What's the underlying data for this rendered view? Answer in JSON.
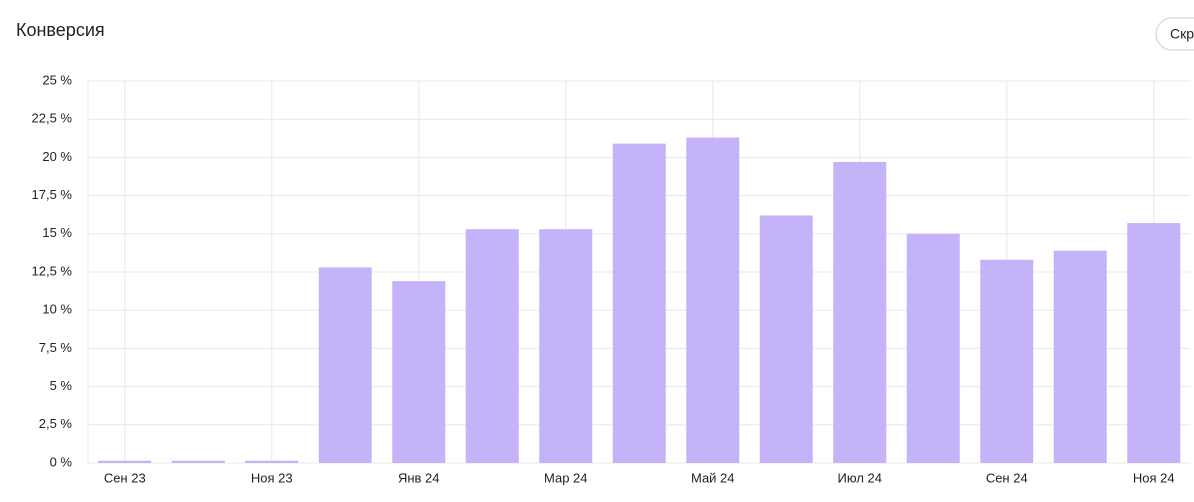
{
  "chart_data": {
    "type": "bar",
    "title": "Конверсия",
    "categories": [
      "Сен 23",
      null,
      "Ноя 23",
      null,
      "Янв 24",
      null,
      "Мар 24",
      null,
      "Май 24",
      null,
      "Июл 24",
      null,
      "Сен 24",
      null,
      "Ноя 24"
    ],
    "values": [
      0.15,
      0.15,
      0.15,
      12.8,
      11.9,
      15.3,
      15.3,
      20.9,
      21.3,
      16.2,
      19.7,
      15.0,
      13.3,
      13.9,
      15.7
    ],
    "color": "#c4b3f9",
    "ylim": [
      0,
      25
    ],
    "yticks": [
      {
        "value": 0,
        "label": "0 %"
      },
      {
        "value": 2.5,
        "label": "2,5 %"
      },
      {
        "value": 5,
        "label": "5 %"
      },
      {
        "value": 7.5,
        "label": "7,5 %"
      },
      {
        "value": 10,
        "label": "10 %"
      },
      {
        "value": 12.5,
        "label": "12,5 %"
      },
      {
        "value": 15,
        "label": "15 %"
      },
      {
        "value": 17.5,
        "label": "17,5 %"
      },
      {
        "value": 20,
        "label": "20 %"
      },
      {
        "value": 22.5,
        "label": "22,5 %"
      },
      {
        "value": 25,
        "label": "25 %"
      }
    ],
    "grid": true
  },
  "controls": {
    "hide_button": "Скр"
  }
}
